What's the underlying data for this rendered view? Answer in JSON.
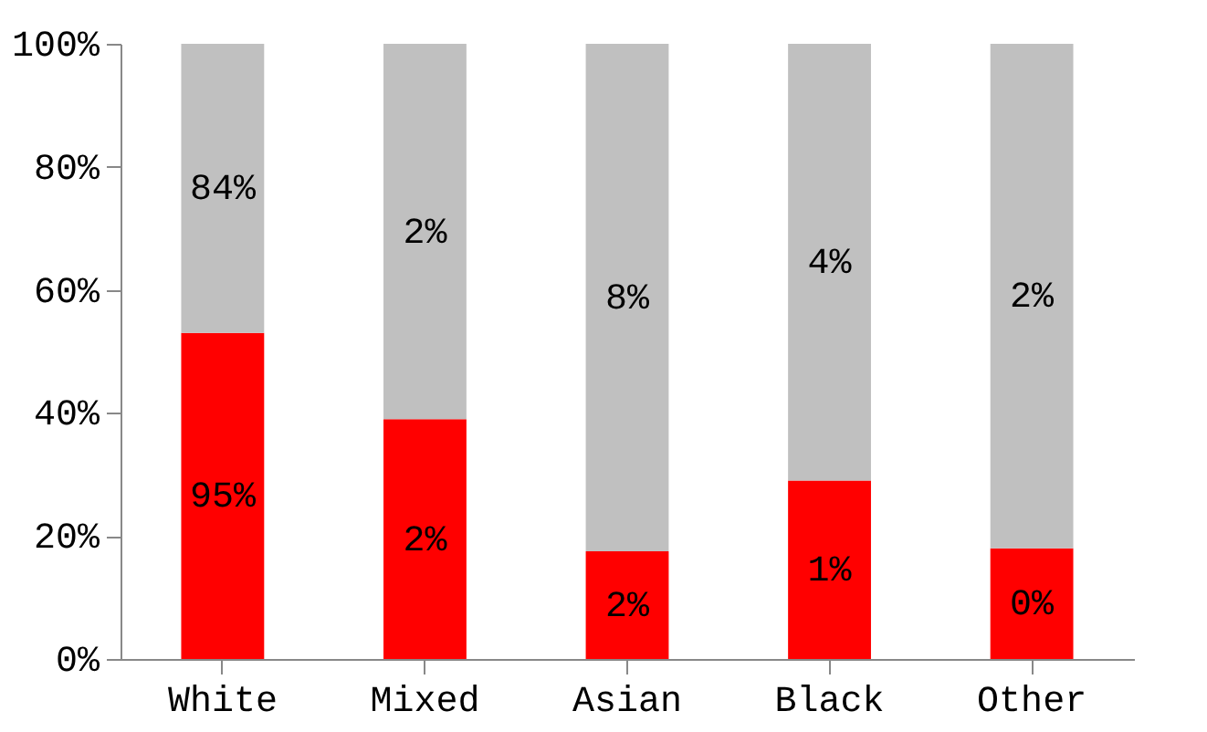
{
  "chart_data": {
    "type": "bar",
    "stacked": true,
    "categories": [
      "White",
      "Mixed",
      "Asian",
      "Black",
      "Other"
    ],
    "series": [
      {
        "color": "#ff0000",
        "values": [
          53,
          39,
          17.5,
          29,
          18
        ]
      },
      {
        "color": "#c0c0c0",
        "values": [
          47,
          61,
          82.5,
          71,
          82
        ]
      }
    ],
    "annotations": [
      "95%",
      "2%",
      "2%",
      "1%",
      "0%",
      "84%",
      "2%",
      "8%",
      "4%",
      "2%"
    ],
    "ylim": [
      0,
      100
    ],
    "yticks": [
      {
        "value": 0,
        "label": "0%"
      },
      {
        "value": 20,
        "label": "20%"
      },
      {
        "value": 40,
        "label": "40%"
      },
      {
        "value": 60,
        "label": "60%"
      },
      {
        "value": 80,
        "label": "80%"
      },
      {
        "value": 100,
        "label": "100%"
      }
    ],
    "grid": false,
    "legend": false
  }
}
